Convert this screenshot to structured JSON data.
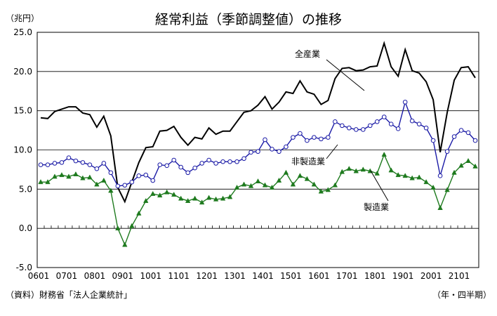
{
  "chart_data": {
    "type": "line",
    "title": "経常利益（季節調整値）の推移",
    "unit_label": "（兆円）",
    "xlabel": "（年・四半期）",
    "source": "（資料）財務省「法人企業統計」",
    "ylim": [
      -5,
      25
    ],
    "yticks": [
      "25.0",
      "20.0",
      "15.0",
      "10.0",
      "5.0",
      "0.0",
      "-5.0"
    ],
    "ytick_values": [
      25,
      20,
      15,
      10,
      5,
      0,
      -5
    ],
    "xtick_labels": [
      "0601",
      "0701",
      "0801",
      "0901",
      "1001",
      "1101",
      "1201",
      "1301",
      "1401",
      "1501",
      "1601",
      "1701",
      "1801",
      "1901",
      "2001",
      "2101"
    ],
    "xtick_index": [
      0,
      4,
      8,
      12,
      16,
      20,
      24,
      28,
      32,
      36,
      40,
      44,
      48,
      52,
      56,
      60
    ],
    "grid": true,
    "series": [
      {
        "name": "全産業",
        "color": "#000000",
        "marker": "none",
        "values": [
          14.1,
          14.0,
          14.9,
          15.2,
          15.5,
          15.5,
          14.7,
          14.5,
          12.9,
          14.3,
          11.8,
          5.2,
          3.4,
          5.9,
          8.4,
          10.3,
          10.4,
          12.4,
          12.5,
          13.0,
          11.6,
          10.6,
          11.6,
          11.4,
          12.8,
          12.0,
          12.4,
          12.4,
          13.6,
          14.8,
          15.0,
          15.7,
          16.8,
          15.2,
          16.1,
          17.4,
          17.2,
          18.8,
          17.4,
          17.1,
          15.8,
          16.3,
          19.1,
          20.4,
          20.5,
          20.1,
          20.2,
          20.6,
          20.7,
          23.6,
          20.6,
          19.4,
          22.8,
          20.1,
          19.8,
          18.7,
          16.4,
          9.7,
          14.8,
          18.9,
          20.5,
          20.6,
          19.2
        ]
      },
      {
        "name": "非製造業",
        "color": "#1a1aa6",
        "marker": "circle",
        "values": [
          8.1,
          8.1,
          8.3,
          8.4,
          9.0,
          8.6,
          8.4,
          8.1,
          7.6,
          8.3,
          7.1,
          5.4,
          5.5,
          5.9,
          6.7,
          6.8,
          6.1,
          8.1,
          8.0,
          8.7,
          7.8,
          7.1,
          7.7,
          8.3,
          8.7,
          8.3,
          8.5,
          8.5,
          8.5,
          8.9,
          9.7,
          9.8,
          11.3,
          10.1,
          9.8,
          10.4,
          11.6,
          12.1,
          11.2,
          11.6,
          11.4,
          11.6,
          13.6,
          13.1,
          12.8,
          12.6,
          12.6,
          13.1,
          13.6,
          14.2,
          13.3,
          12.7,
          16.1,
          13.7,
          13.3,
          12.8,
          11.2,
          6.7,
          9.8,
          11.7,
          12.5,
          12.2,
          11.2
        ]
      },
      {
        "name": "製造業",
        "color": "#1e7a1e",
        "marker": "triangle",
        "values": [
          5.9,
          5.9,
          6.6,
          6.8,
          6.6,
          6.9,
          6.4,
          6.5,
          5.6,
          6.1,
          4.8,
          0.0,
          -2.1,
          0.3,
          1.9,
          3.5,
          4.4,
          4.2,
          4.6,
          4.3,
          3.8,
          3.5,
          3.8,
          3.3,
          3.9,
          3.7,
          3.8,
          4.0,
          5.2,
          5.6,
          5.4,
          6.0,
          5.5,
          5.2,
          6.1,
          7.1,
          5.6,
          6.7,
          6.3,
          5.6,
          4.7,
          4.9,
          5.5,
          7.2,
          7.6,
          7.3,
          7.5,
          7.3,
          7.0,
          9.4,
          7.4,
          6.8,
          6.7,
          6.4,
          6.5,
          5.9,
          5.2,
          2.6,
          4.9,
          7.1,
          8.0,
          8.6,
          7.9
        ]
      }
    ],
    "annotations": [
      {
        "text": "全産業",
        "for_series": 0
      },
      {
        "text": "非製造業",
        "for_series": 1
      },
      {
        "text": "製造業",
        "for_series": 2
      }
    ]
  }
}
